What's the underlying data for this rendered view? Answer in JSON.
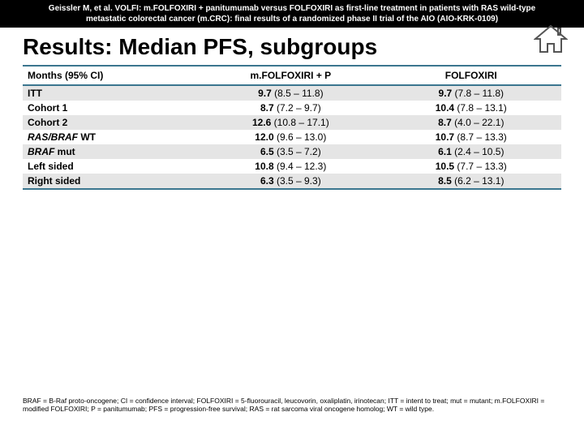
{
  "header": {
    "line1": "Geissler M, et al. VOLFI: m.FOLFOXIRI + panitumumab versus FOLFOXIRI as first-line treatment in patients with RAS wild-type",
    "line2": "metastatic colorectal cancer (m.CRC): final results of a randomized phase II trial of the AIO (AIO-KRK-0109)"
  },
  "title": "Results: Median PFS, subgroups",
  "table": {
    "col0": "Months (95% CI)",
    "col1": "m.FOLFOXIRI + P",
    "col2": "FOLFOXIRI",
    "rows": [
      {
        "label": "ITT",
        "italic": "",
        "suffix": "",
        "a_bold": "9.7",
        "a_ci": " (8.5 – 11.8)",
        "b_bold": "9.7",
        "b_ci": " (7.8 – 11.8)"
      },
      {
        "label": "Cohort 1",
        "italic": "",
        "suffix": "",
        "a_bold": "8.7",
        "a_ci": " (7.2 – 9.7)",
        "b_bold": "10.4",
        "b_ci": " (7.8 – 13.1)"
      },
      {
        "label": "Cohort 2",
        "italic": "",
        "suffix": "",
        "a_bold": "12.6",
        "a_ci": " (10.8 – 17.1)",
        "b_bold": "8.7",
        "b_ci": " (4.0 – 22.1)"
      },
      {
        "label": "",
        "italic": "RAS/BRAF",
        "suffix": " WT",
        "a_bold": "12.0",
        "a_ci": " (9.6 – 13.0)",
        "b_bold": "10.7",
        "b_ci": " (8.7 – 13.3)"
      },
      {
        "label": "",
        "italic": "BRAF",
        "suffix": " mut",
        "a_bold": "6.5",
        "a_ci": " (3.5 – 7.2)",
        "b_bold": "6.1",
        "b_ci": " (2.4 – 10.5)"
      },
      {
        "label": "Left sided",
        "italic": "",
        "suffix": "",
        "a_bold": "10.8",
        "a_ci": " (9.4 – 12.3)",
        "b_bold": "10.5",
        "b_ci": " (7.7 – 13.3)"
      },
      {
        "label": "Right sided",
        "italic": "",
        "suffix": "",
        "a_bold": "6.3",
        "a_ci": " (3.5 – 9.3)",
        "b_bold": "8.5",
        "b_ci": " (6.2 – 13.1)"
      }
    ]
  },
  "footer": "BRAF = B-Raf proto-oncogene; CI = confidence interval; FOLFOXIRI = 5-fluorouracil, leucovorin, oxaliplatin, irinotecan; ITT = intent to treat; mut = mutant; m.FOLFOXIRI = modified FOLFOXIRI; P = panitumumab; PFS = progression-free survival; RAS = rat sarcoma viral oncogene homolog; WT = wild type.",
  "colors": {
    "header_bg": "#000000",
    "table_border": "#3b768f",
    "row_odd": "#e5e5e5",
    "row_even": "#ffffff",
    "home_icon": "#5a5a5a"
  }
}
